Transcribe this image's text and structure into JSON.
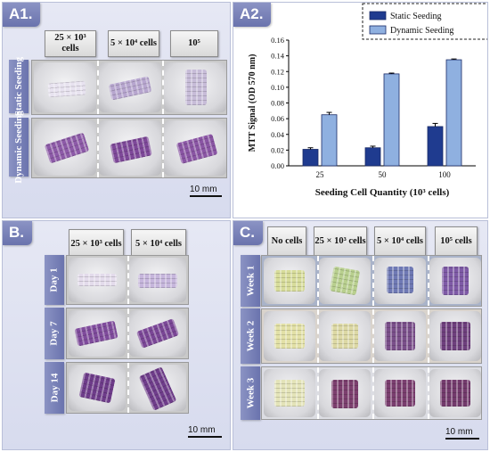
{
  "panels": {
    "a1": {
      "label": "A1.",
      "columns": [
        "25 × 10³ cells",
        "5 × 10⁴ cells",
        "10⁵"
      ],
      "rows": [
        "Static Seeding",
        "Dynamic Seeding"
      ],
      "scale": "10 mm"
    },
    "a2": {
      "label": "A2."
    },
    "b": {
      "label": "B.",
      "columns": [
        "25 × 10³ cells",
        "5 × 10⁴ cells"
      ],
      "rows": [
        "Day 1",
        "Day 7",
        "Day 14"
      ],
      "scale": "10 mm"
    },
    "c": {
      "label": "C.",
      "columns": [
        "No cells",
        "25 × 10³ cells",
        "5 × 10⁴ cells",
        "10⁵ cells"
      ],
      "rows": [
        "Week 1",
        "Week 2",
        "Week 3"
      ],
      "scale": "10 mm"
    }
  },
  "chart_data": {
    "type": "bar",
    "categories": [
      "25",
      "50",
      "100"
    ],
    "series": [
      {
        "name": "Static Seeding",
        "values": [
          0.021,
          0.023,
          0.05
        ],
        "errors": [
          0.002,
          0.002,
          0.004
        ],
        "color": "#1f3b8f"
      },
      {
        "name": "Dynamic Seeding",
        "values": [
          0.065,
          0.117,
          0.135
        ],
        "errors": [
          0.003,
          0.001,
          0.001
        ],
        "color": "#8fb0e0"
      }
    ],
    "xlabel": "Seeding Cell Quantity (10³ cells)",
    "ylabel": "MTT Signal (OD 570 nm)",
    "ylim": [
      0,
      0.16
    ],
    "yticks": [
      "0.00",
      "0.02",
      "0.04",
      "0.06",
      "0.08",
      "0.10",
      "0.12",
      "0.14",
      "0.16"
    ],
    "legend": "top-right"
  }
}
